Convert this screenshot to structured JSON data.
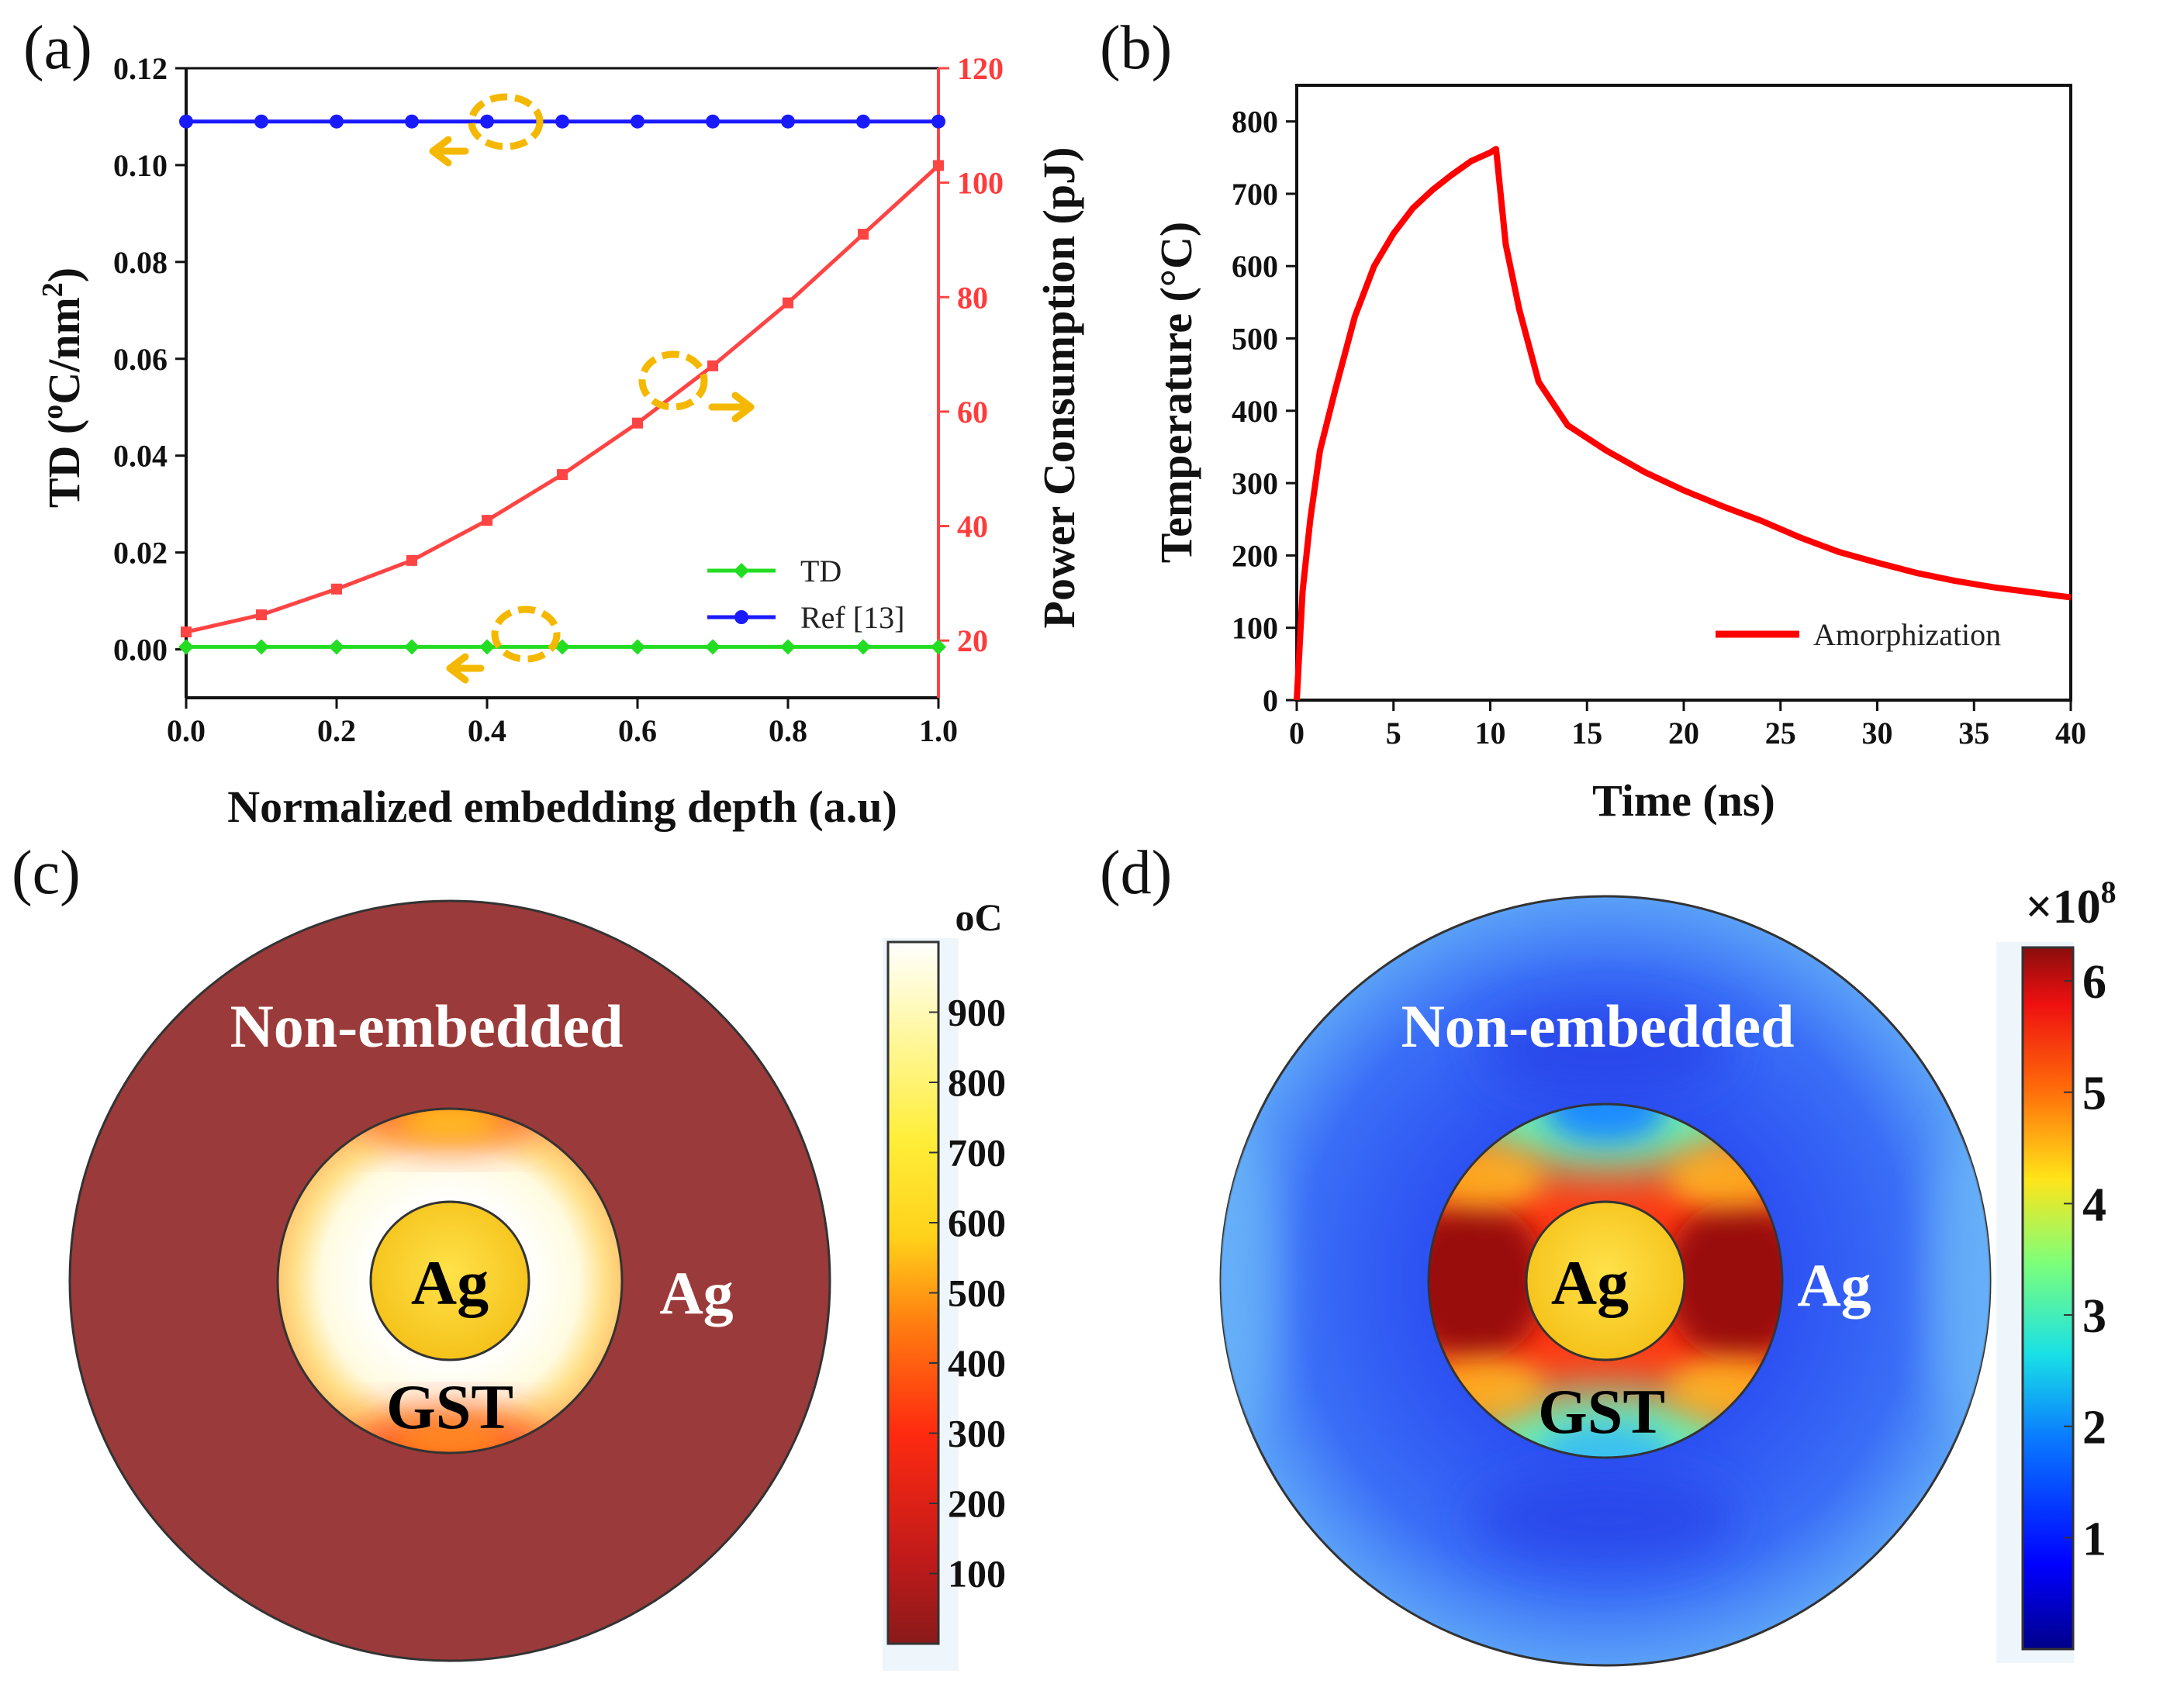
{
  "panels": {
    "a": "(a)",
    "b": "(b)",
    "c": "(c)",
    "d": "(d)"
  },
  "chart_data": [
    {
      "panel": "a",
      "type": "line",
      "x": [
        0.0,
        0.1,
        0.2,
        0.3,
        0.4,
        0.5,
        0.6,
        0.7,
        0.8,
        0.9,
        1.0
      ],
      "xlabel": "Normalized embedding depth (a.u)",
      "ylabel": "TD (°C/nm²)",
      "ylabel_main": "TD (",
      "ylabel_sup1": "o",
      "ylabel_mid": "C/nm",
      "ylabel_sup2": "2",
      "ylabel_end": ")",
      "y2label": "Power Consumption (pJ)",
      "xlim": [
        0.0,
        1.0
      ],
      "ylim": [
        -0.01,
        0.12
      ],
      "y2lim": [
        10,
        120
      ],
      "xticks": [
        "0.0",
        "0.2",
        "0.4",
        "0.6",
        "0.8",
        "1.0"
      ],
      "yticks": [
        "0.00",
        "0.02",
        "0.04",
        "0.06",
        "0.08",
        "0.10",
        "0.12"
      ],
      "y2ticks": [
        "20",
        "40",
        "60",
        "80",
        "100",
        "120"
      ],
      "series": [
        {
          "name": "TD",
          "axis": "left",
          "color": "#22dd22",
          "marker": "diamond",
          "values": [
            0.0005,
            0.0005,
            0.0005,
            0.0005,
            0.0005,
            0.0005,
            0.0005,
            0.0005,
            0.0005,
            0.0005,
            0.0005
          ]
        },
        {
          "name": "Ref [13]",
          "axis": "left",
          "color": "#1a1aff",
          "marker": "circle",
          "values": [
            0.109,
            0.109,
            0.109,
            0.109,
            0.109,
            0.109,
            0.109,
            0.109,
            0.109,
            0.109,
            0.109
          ]
        },
        {
          "name": "Power Consumption",
          "axis": "right",
          "color": "#ff4444",
          "marker": "square",
          "values": [
            21.5,
            24.5,
            29.0,
            34.0,
            41.0,
            49.0,
            58.0,
            68.0,
            79.0,
            91.0,
            103.0
          ]
        }
      ],
      "legend": [
        "TD",
        "Ref [13]"
      ],
      "annotation_color": "#f5b800"
    },
    {
      "panel": "b",
      "type": "line",
      "xlabel": "Time (ns)",
      "ylabel": "Temperature (°C)",
      "xlim": [
        0,
        40
      ],
      "ylim": [
        0,
        850
      ],
      "xticks": [
        "0",
        "5",
        "10",
        "15",
        "20",
        "25",
        "30",
        "35",
        "40"
      ],
      "yticks": [
        "0",
        "100",
        "200",
        "300",
        "400",
        "500",
        "600",
        "700",
        "800"
      ],
      "series": [
        {
          "name": "Amorphization",
          "color": "#ff0000",
          "x": [
            0,
            0.3,
            0.7,
            1.2,
            2,
            3,
            4,
            5,
            6,
            7,
            8,
            9,
            10,
            10.3,
            10.8,
            11.5,
            12.5,
            14,
            16,
            18,
            20,
            22,
            24,
            26,
            28,
            30,
            32,
            34,
            36,
            38,
            40
          ],
          "values": [
            0,
            150,
            250,
            345,
            430,
            530,
            600,
            645,
            680,
            705,
            726,
            745,
            757,
            762,
            630,
            540,
            440,
            380,
            345,
            315,
            290,
            268,
            248,
            225,
            205,
            190,
            176,
            165,
            156,
            149,
            142
          ]
        }
      ],
      "legend": [
        "Amorphization"
      ]
    },
    {
      "panel": "c",
      "type": "heatmap",
      "unit": "oC",
      "colorbar_ticks": [
        "100",
        "200",
        "300",
        "400",
        "500",
        "600",
        "700",
        "800",
        "900"
      ],
      "colorbar_range": [
        0,
        1000
      ],
      "labels": {
        "region": "Non-embedded",
        "outer": "Ag",
        "core": "Ag",
        "shell": "GST"
      }
    },
    {
      "panel": "d",
      "type": "heatmap",
      "unit": "×10",
      "unit_exp": "8",
      "colorbar_ticks": [
        "1",
        "2",
        "3",
        "4",
        "5",
        "6"
      ],
      "colorbar_range": [
        0,
        6.3
      ],
      "labels": {
        "region": "Non-embedded",
        "outer": "Ag",
        "core": "Ag",
        "shell": "GST"
      }
    }
  ]
}
